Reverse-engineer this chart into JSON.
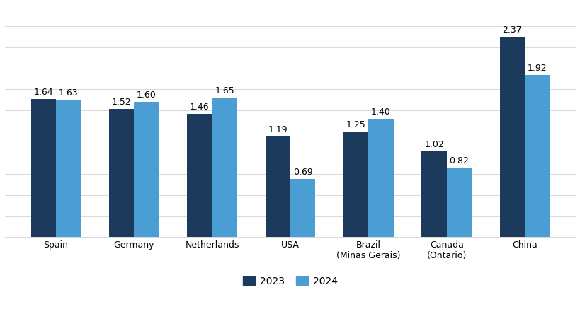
{
  "categories": [
    "Spain",
    "Germany",
    "Netherlands",
    "USA",
    "Brazil\n(Minas Gerais)",
    "Canada\n(Ontario)",
    "China"
  ],
  "values_2023": [
    1.64,
    1.52,
    1.46,
    1.19,
    1.25,
    1.02,
    2.37
  ],
  "values_2024": [
    1.63,
    1.6,
    1.65,
    0.69,
    1.4,
    0.82,
    1.92
  ],
  "color_2023": "#1b3a5c",
  "color_2024": "#4a9ed4",
  "ylim": [
    0,
    2.75
  ],
  "yticks": [
    0.0,
    0.25,
    0.5,
    0.75,
    1.0,
    1.25,
    1.5,
    1.75,
    2.0,
    2.25,
    2.5
  ],
  "legend_labels": [
    "2023",
    "2024"
  ],
  "bar_width": 0.32,
  "label_fontsize": 9,
  "tick_fontsize": 9,
  "background_color": "#ffffff",
  "grid_color": "#d8d8d8"
}
